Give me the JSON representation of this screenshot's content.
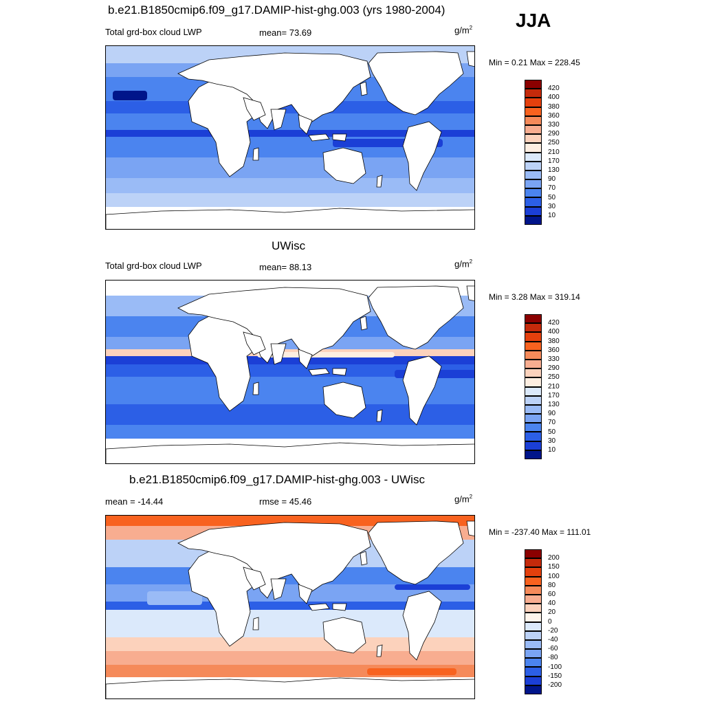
{
  "season_label": "JJA",
  "panels": [
    {
      "title": "b.e21.B1850cmip6.f09_g17.DAMIP-hist-ghg.003 (yrs 1980-2004)",
      "left_label": "Total grd-box cloud LWP",
      "center_label": "mean=  73.69",
      "unit_base": "g/m",
      "unit_exp": "2",
      "minmax": "Min =   0.21 Max = 228.45",
      "colorbar": {
        "levels": [
          "420",
          "400",
          "380",
          "360",
          "330",
          "290",
          "250",
          "210",
          "170",
          "130",
          "90",
          "70",
          "50",
          "30",
          "10"
        ],
        "colors": [
          "#8b0000",
          "#c42a0b",
          "#e4400d",
          "#f8621f",
          "#f58a5a",
          "#f8ad90",
          "#fcd2bc",
          "#fdeee1",
          "#dbe9fb",
          "#bcd2f7",
          "#9abbf6",
          "#7aa4f3",
          "#4b84ef",
          "#2c5fe6",
          "#1b3fd6",
          "#00158a"
        ]
      }
    },
    {
      "title": "UWisc",
      "left_label": "Total grd-box cloud LWP",
      "center_label": "mean=  88.13",
      "unit_base": "g/m",
      "unit_exp": "2",
      "minmax": "Min =   3.28 Max = 319.14",
      "colorbar": {
        "levels": [
          "420",
          "400",
          "380",
          "360",
          "330",
          "290",
          "250",
          "210",
          "170",
          "130",
          "90",
          "70",
          "50",
          "30",
          "10"
        ],
        "colors": [
          "#8b0000",
          "#c42a0b",
          "#e4400d",
          "#f8621f",
          "#f58a5a",
          "#f8ad90",
          "#fcd2bc",
          "#fdeee1",
          "#dbe9fb",
          "#bcd2f7",
          "#9abbf6",
          "#7aa4f3",
          "#4b84ef",
          "#2c5fe6",
          "#1b3fd6",
          "#00158a"
        ]
      }
    },
    {
      "title": "b.e21.B1850cmip6.f09_g17.DAMIP-hist-ghg.003 - UWisc",
      "left_label": "mean = -14.44",
      "center_label": "rmse =  45.46",
      "unit_base": "g/m",
      "unit_exp": "2",
      "minmax": "Min = -237.40 Max = 111.01",
      "colorbar": {
        "levels": [
          "200",
          "150",
          "100",
          "80",
          "60",
          "40",
          "20",
          "0",
          "-20",
          "-40",
          "-60",
          "-80",
          "-100",
          "-150",
          "-200"
        ],
        "colors": [
          "#8b0000",
          "#c42a0b",
          "#e4400d",
          "#f8621f",
          "#f58a5a",
          "#f8ad90",
          "#fcd2bc",
          "#fff5ec",
          "#dbe9fb",
          "#bcd2f7",
          "#9abbf6",
          "#7aa4f3",
          "#4b84ef",
          "#2c5fe6",
          "#1b3fd6",
          "#00158a"
        ]
      }
    }
  ]
}
